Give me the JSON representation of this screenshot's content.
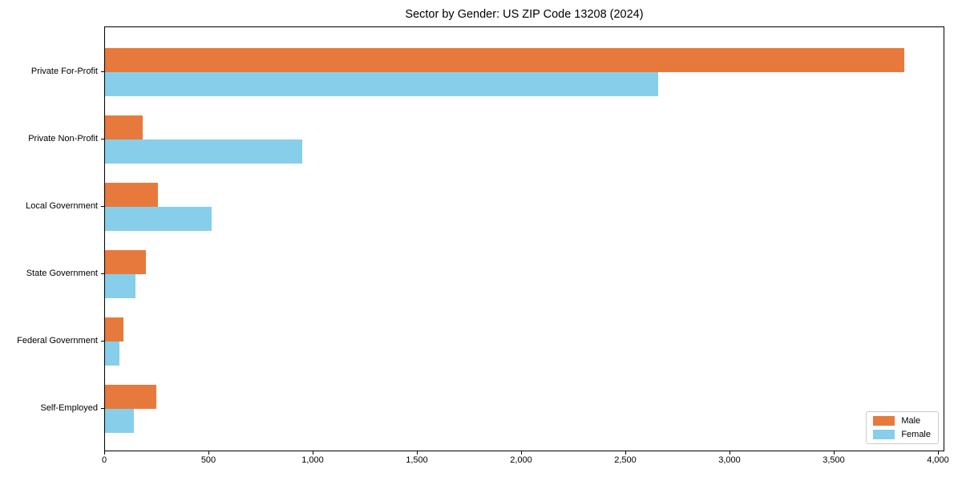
{
  "chart_data": {
    "type": "bar",
    "orientation": "horizontal",
    "title": "Sector by Gender: US ZIP Code 13208 (2024)",
    "categories": [
      "Private For-Profit",
      "Private Non-Profit",
      "Local Government",
      "State Government",
      "Federal Government",
      "Self-Employed"
    ],
    "series": [
      {
        "name": "Male",
        "color": "#E8793D",
        "values": [
          3835,
          180,
          255,
          195,
          90,
          245
        ]
      },
      {
        "name": "Female",
        "color": "#87CEEB",
        "values": [
          2655,
          945,
          510,
          145,
          70,
          140
        ]
      }
    ],
    "xlabel": "",
    "ylabel": "",
    "xlim": [
      0,
      4031
    ],
    "xticks": [
      0,
      500,
      1000,
      1500,
      2000,
      2500,
      3000,
      3500,
      4000
    ],
    "xtick_labels": [
      "0",
      "500",
      "1,000",
      "1,500",
      "2,000",
      "2,500",
      "3,000",
      "3,500",
      "4,000"
    ],
    "grid": false,
    "legend": {
      "position": "lower right",
      "entries": [
        "Male",
        "Female"
      ]
    },
    "colors": {
      "axis": "#000000",
      "legend_border": "#cccccc",
      "background": "#ffffff"
    }
  }
}
